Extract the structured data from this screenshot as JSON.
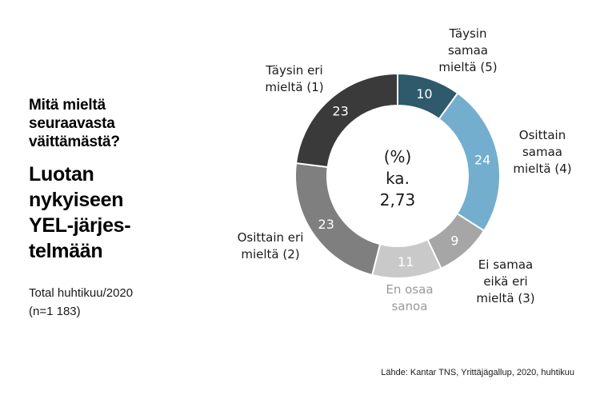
{
  "left_panel": {
    "question": "Mitä mieltä\nseuraavasta\nväittämästä?",
    "statement": "Luotan\nnykyiseen\nYEL-järjes-\ntelmään",
    "sample": "Total huhtikuu/2020\n(n=1 183)"
  },
  "footer": {
    "source": "Lähde: Kantar TNS, Yrittäjägallup, 2020, huhtikuu"
  },
  "chart_data": {
    "type": "pie",
    "subtype": "donut",
    "title": "Luotan nykyiseen YEL-järjestelmään",
    "unit": "%",
    "center_text": "(%)\nka.\n2,73",
    "mean": "2,73",
    "value_text_color": "#ffffff",
    "segment_gap_color": "#ffffff",
    "legend_position": "around",
    "segments": [
      {
        "label": "Täysin\nsamaa\nmieltä (5)",
        "value": 10,
        "color": "#2e5a6b",
        "label_color": "#1a1a1a"
      },
      {
        "label": "Osittain\nsamaa\nmieltä (4)",
        "value": 24,
        "color": "#73aece",
        "label_color": "#1a1a1a"
      },
      {
        "label": "Ei samaa\neikä eri\nmieltä (3)",
        "value": 9,
        "color": "#a6a6a6",
        "label_color": "#1a1a1a"
      },
      {
        "label": "En osaa\nsanoa",
        "value": 11,
        "color": "#c9c9c9",
        "label_color": "#999999"
      },
      {
        "label": "Osittain eri\nmieltä (2)",
        "value": 23,
        "color": "#7f7f7f",
        "label_color": "#1a1a1a"
      },
      {
        "label": "Täysin eri\nmieltä (1)",
        "value": 23,
        "color": "#3a3a3a",
        "label_color": "#1a1a1a"
      }
    ]
  }
}
